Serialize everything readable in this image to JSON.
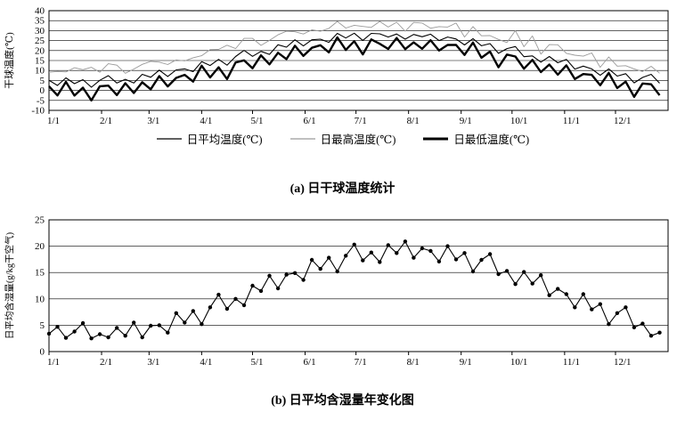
{
  "captions": {
    "a": "(a) 日干球温度统计",
    "b": "(b) 日平均含湿量年变化图"
  },
  "colors": {
    "line_black": "#000000",
    "line_gray": "#9a9a9a",
    "background": "#ffffff"
  },
  "chart_data": [
    {
      "id": "dry-bulb-temperature",
      "type": "line",
      "title": "(a) 日干球温度统计",
      "ylabel": "干球温度(℃)",
      "ylim": [
        -10,
        40
      ],
      "ytick_step": 5,
      "grid": "horizontal",
      "legend_position": "bottom",
      "xtick_labels": [
        "1/1",
        "2/1",
        "3/1",
        "4/1",
        "5/1",
        "6/1",
        "7/1",
        "8/1",
        "9/1",
        "10/1",
        "11/1",
        "12/1"
      ],
      "xtick_days": [
        1,
        32,
        60,
        91,
        121,
        152,
        182,
        213,
        244,
        274,
        305,
        335
      ],
      "x_days": [
        1,
        6,
        11,
        16,
        21,
        26,
        31,
        36,
        41,
        46,
        51,
        56,
        61,
        66,
        71,
        76,
        81,
        86,
        91,
        96,
        101,
        106,
        111,
        116,
        121,
        126,
        131,
        136,
        141,
        146,
        151,
        156,
        161,
        166,
        171,
        176,
        181,
        186,
        191,
        196,
        201,
        206,
        211,
        216,
        221,
        226,
        231,
        236,
        241,
        246,
        251,
        256,
        261,
        266,
        271,
        276,
        281,
        286,
        291,
        296,
        301,
        306,
        311,
        316,
        321,
        326,
        331,
        336,
        341,
        346,
        351,
        356,
        361
      ],
      "series": [
        {
          "name": "日平均温度(℃)",
          "style": "thin-black",
          "values": [
            5.1,
            2.5,
            6.3,
            3.4,
            5.4,
            1.6,
            5.1,
            7.4,
            3.7,
            5.6,
            3.7,
            8.1,
            6.6,
            10.2,
            7.0,
            10.3,
            10.8,
            9.4,
            14.4,
            12.5,
            15.6,
            12.7,
            17.0,
            20.1,
            17.1,
            19.6,
            18.1,
            22.9,
            21.7,
            25.4,
            22.3,
            25.4,
            25.7,
            24.1,
            28.6,
            26.3,
            28.7,
            25.1,
            28.6,
            28.4,
            26.8,
            28.3,
            25.7,
            28.1,
            26.9,
            28.2,
            25.0,
            26.8,
            25.8,
            22.8,
            26.0,
            22.4,
            23.5,
            18.6,
            21.0,
            22.0,
            16.9,
            17.3,
            14.2,
            17.0,
            13.9,
            15.6,
            10.7,
            12.2,
            10.8,
            7.6,
            10.8,
            7.2,
            8.4,
            3.8,
            6.5,
            8.1,
            3.6
          ]
        },
        {
          "name": "日最高温度(℃)",
          "style": "thin-gray",
          "values": [
            9.1,
            9.5,
            9.3,
            11.4,
            10.4,
            11.6,
            9.1,
            13.4,
            12.7,
            8.6,
            10.7,
            13.1,
            14.6,
            14.2,
            13.0,
            15.3,
            14.8,
            16.4,
            17.4,
            20.5,
            20.6,
            22.7,
            21.0,
            26.1,
            26.1,
            22.6,
            25.1,
            27.9,
            29.7,
            29.4,
            28.3,
            30.4,
            29.7,
            31.1,
            34.6,
            31.3,
            32.7,
            32.1,
            31.6,
            34.6,
            31.8,
            34.2,
            29.7,
            34.1,
            33.8,
            31.2,
            32.0,
            31.8,
            33.8,
            26.8,
            32.0,
            27.4,
            27.5,
            25.6,
            24.0,
            30.0,
            21.9,
            27.3,
            18.2,
            23.0,
            22.9,
            18.6,
            17.7,
            17.2,
            18.8,
            11.6,
            16.8,
            12.2,
            12.4,
            10.8,
            9.5,
            12.1,
            8.6
          ]
        },
        {
          "name": "日最低温度(℃)",
          "style": "thick-black",
          "values": [
            2.1,
            -2.5,
            4.3,
            -2.6,
            1.4,
            -5.0,
            2.1,
            2.4,
            -2.3,
            3.6,
            -1.3,
            4.1,
            0.6,
            7.2,
            2.0,
            6.3,
            7.8,
            4.4,
            12.4,
            6.5,
            11.6,
            5.7,
            14.0,
            15.1,
            11.1,
            17.6,
            13.1,
            18.9,
            15.7,
            22.4,
            17.3,
            21.4,
            22.7,
            19.1,
            26.6,
            20.3,
            24.7,
            18.1,
            25.6,
            23.4,
            20.8,
            26.3,
            20.7,
            24.1,
            20.9,
            25.2,
            20.0,
            22.8,
            22.8,
            17.8,
            24.0,
            16.4,
            19.5,
            11.6,
            18.0,
            17.0,
            10.9,
            15.3,
            9.2,
            13.0,
            7.9,
            12.6,
            5.7,
            8.2,
            7.8,
            2.6,
            8.8,
            1.2,
            4.4,
            -3.2,
            3.5,
            3.1,
            -2.4
          ]
        }
      ]
    },
    {
      "id": "humidity-ratio",
      "type": "line",
      "title": "(b) 日平均含湿量年变化图",
      "ylabel": "日平均含湿量(g/kg干空气)",
      "ylim": [
        0,
        25
      ],
      "ytick_step": 5,
      "grid": "horizontal",
      "legend_position": "none",
      "xtick_labels": [
        "1/1",
        "2/1",
        "3/1",
        "4/1",
        "5/1",
        "6/1",
        "7/1",
        "8/1",
        "9/1",
        "10/1",
        "11/1",
        "12/1"
      ],
      "xtick_days": [
        1,
        32,
        60,
        91,
        121,
        152,
        182,
        213,
        244,
        274,
        305,
        335
      ],
      "x_days": [
        1,
        6,
        11,
        16,
        21,
        26,
        31,
        36,
        41,
        46,
        51,
        56,
        61,
        66,
        71,
        76,
        81,
        86,
        91,
        96,
        101,
        106,
        111,
        116,
        121,
        126,
        131,
        136,
        141,
        146,
        151,
        156,
        161,
        166,
        171,
        176,
        181,
        186,
        191,
        196,
        201,
        206,
        211,
        216,
        221,
        226,
        231,
        236,
        241,
        246,
        251,
        256,
        261,
        266,
        271,
        276,
        281,
        286,
        291,
        296,
        301,
        306,
        311,
        316,
        321,
        326,
        331,
        336,
        341,
        346,
        351,
        356,
        361
      ],
      "series": [
        {
          "name": "日平均含湿量(g/kg干空气)",
          "style": "marker-line",
          "values": [
            3.4,
            4.7,
            2.6,
            3.8,
            5.4,
            2.5,
            3.3,
            2.7,
            4.5,
            3.0,
            5.5,
            2.7,
            4.9,
            5.0,
            3.6,
            7.3,
            5.5,
            7.7,
            5.2,
            8.4,
            10.8,
            8.1,
            10.0,
            8.8,
            12.5,
            11.5,
            14.4,
            12.0,
            14.6,
            14.9,
            13.6,
            17.4,
            15.7,
            17.8,
            15.2,
            18.2,
            20.3,
            17.3,
            18.8,
            17.0,
            20.2,
            18.7,
            20.9,
            17.8,
            19.6,
            19.1,
            17.1,
            20.0,
            17.5,
            18.7,
            15.2,
            17.4,
            18.5,
            14.7,
            15.3,
            12.8,
            15.1,
            12.9,
            14.5,
            10.7,
            11.9,
            10.9,
            8.4,
            10.9,
            8.0,
            9.0,
            5.2,
            7.3,
            8.4,
            4.6,
            5.3,
            3.0,
            3.6
          ]
        }
      ]
    }
  ]
}
